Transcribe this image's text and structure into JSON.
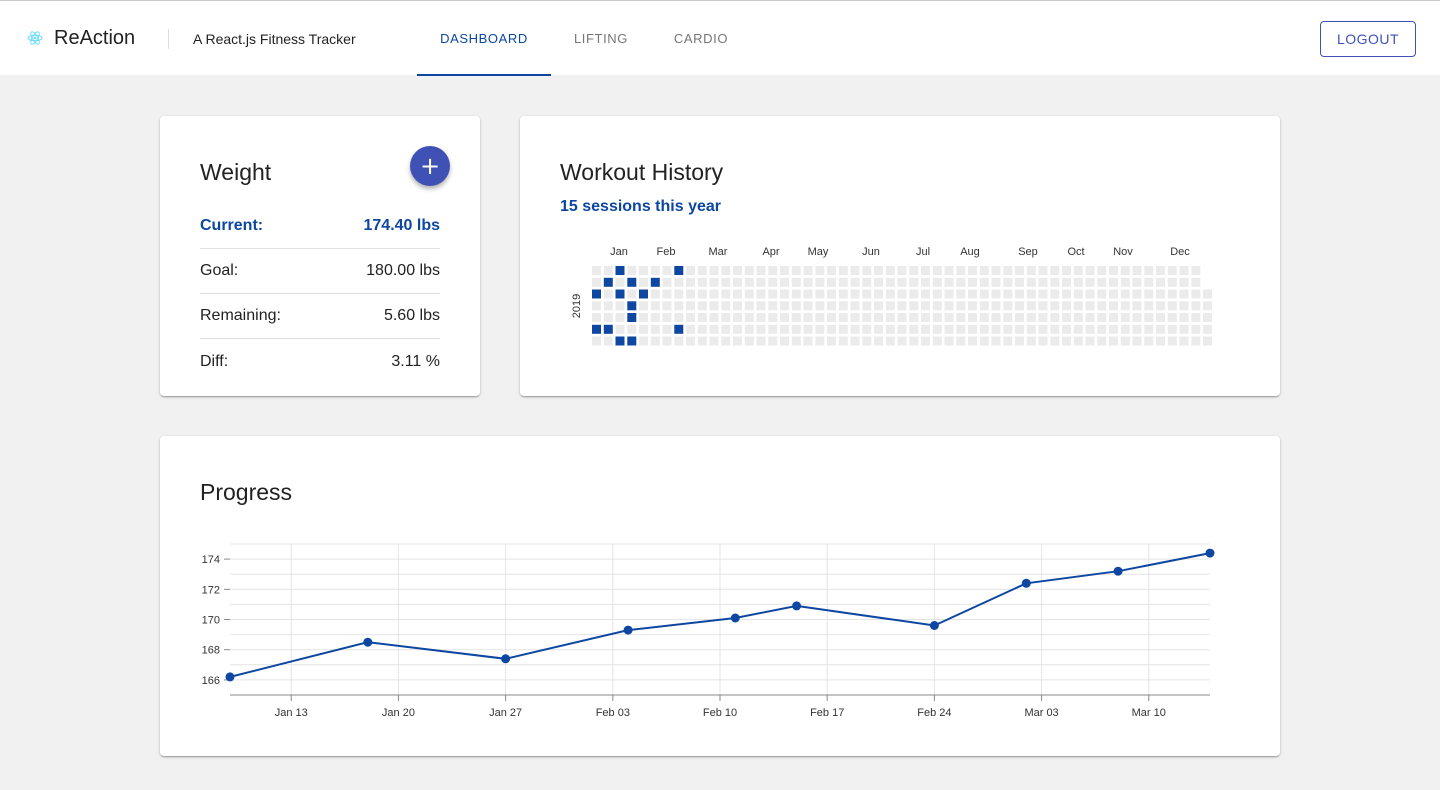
{
  "header": {
    "brand": "ReAction",
    "tagline": "A React.js Fitness Tracker",
    "tabs": [
      "DASHBOARD",
      "LIFTING",
      "CARDIO"
    ],
    "active_tab": "DASHBOARD",
    "logout_label": "LOGOUT",
    "accent_color": "#0d47a1",
    "primary_color": "#3f51b5",
    "brand_icon": "react-atom-icon"
  },
  "weight": {
    "title": "Weight",
    "add_icon": "plus-icon",
    "rows": [
      {
        "label": "Current:",
        "value": "174.40 lbs"
      },
      {
        "label": "Goal:",
        "value": "180.00 lbs"
      },
      {
        "label": "Remaining:",
        "value": "5.60 lbs"
      },
      {
        "label": "Diff:",
        "value": "3.11 %"
      }
    ]
  },
  "history": {
    "title": "Workout History",
    "sessions": "15 sessions this year",
    "year_label": "2019",
    "months": [
      "Jan",
      "Feb",
      "Mar",
      "Apr",
      "May",
      "Jun",
      "Jul",
      "Aug",
      "Sep",
      "Oct",
      "Nov",
      "Dec"
    ],
    "filled_cells": [
      [
        2,
        0
      ],
      [
        1,
        1
      ],
      [
        3,
        1
      ],
      [
        0,
        2
      ],
      [
        2,
        2
      ],
      [
        4,
        2
      ],
      [
        3,
        3
      ],
      [
        3,
        4
      ],
      [
        0,
        5
      ],
      [
        1,
        5
      ],
      [
        2,
        6
      ],
      [
        3,
        6
      ],
      [
        5,
        1
      ],
      [
        7,
        0
      ],
      [
        7,
        5
      ]
    ],
    "filled_color": "#0d47a1",
    "empty_color": "#ebebeb"
  },
  "progress": {
    "title": "Progress"
  },
  "chart_data": {
    "type": "line",
    "x": [
      "2019-01-09",
      "2019-01-18",
      "2019-01-27",
      "2019-02-04",
      "2019-02-11",
      "2019-02-15",
      "2019-02-24",
      "2019-03-02",
      "2019-03-08",
      "2019-03-14"
    ],
    "series": [
      {
        "values": [
          166.2,
          168.5,
          167.4,
          169.3,
          170.1,
          170.9,
          169.6,
          172.4,
          173.2,
          174.4
        ]
      }
    ],
    "x_tick_labels": [
      "Jan 13",
      "Jan 20",
      "Jan 27",
      "Feb 03",
      "Feb 10",
      "Feb 17",
      "Feb 24",
      "Mar 03",
      "Mar 10"
    ],
    "y_ticks": [
      166,
      168,
      170,
      172,
      174
    ],
    "ylim": [
      165,
      175
    ],
    "xlim": [
      "2019-01-09",
      "2019-03-14"
    ],
    "grid": true,
    "line_color": "#0d47a1"
  }
}
